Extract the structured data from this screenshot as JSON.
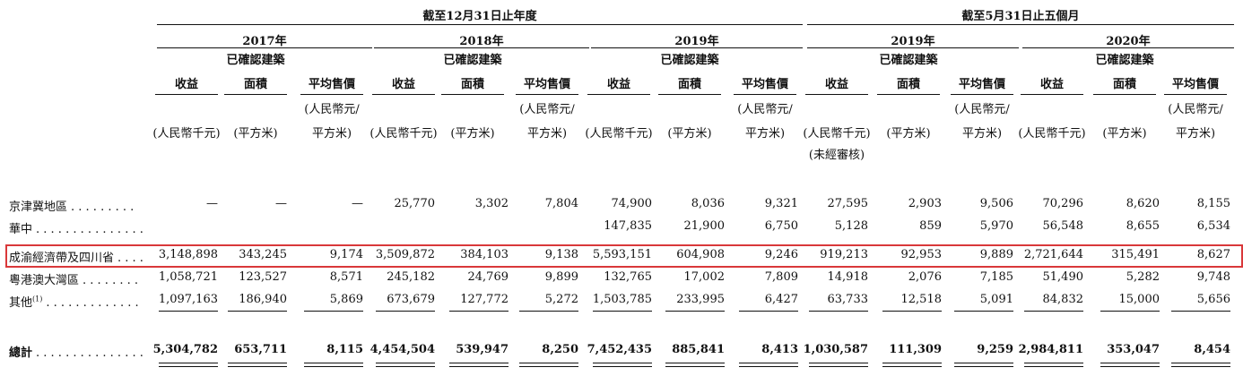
{
  "header": {
    "group_year_end": "截至12月31日止年度",
    "group_five_months": "截至5月31日止五個月",
    "years": [
      "2017年",
      "2018年",
      "2019年",
      "2019年",
      "2020年"
    ]
  },
  "columns": {
    "revenue": "收益",
    "area_line1": "已確認建築",
    "area_line2": "面積",
    "price": "平均售價",
    "unit_revenue": "(人民幣千元)",
    "unit_area": "(平方米)",
    "unit_price_line1": "(人民幣元/",
    "unit_price_line2": "平方米)",
    "unaudited": "(未經審核)"
  },
  "rows": [
    {
      "label": "京津冀地區",
      "dots": ". . . . . . . . .",
      "values": [
        "—",
        "—",
        "—",
        "25,770",
        "3,302",
        "7,804",
        "74,900",
        "8,036",
        "9,321",
        "27,595",
        "2,903",
        "9,506",
        "70,296",
        "8,620",
        "8,155"
      ]
    },
    {
      "label": "華中",
      "dots": ". . . . . . . . . . . . . . .",
      "values": [
        "",
        "",
        "",
        "",
        "",
        "",
        "147,835",
        "21,900",
        "6,750",
        "5,128",
        "859",
        "5,970",
        "56,548",
        "8,655",
        "6,534"
      ]
    },
    {
      "label": "成渝經濟帶及四川省",
      "dots": ". . . .",
      "values": [
        "3,148,898",
        "343,245",
        "9,174",
        "3,509,872",
        "384,103",
        "9,138",
        "5,593,151",
        "604,908",
        "9,246",
        "919,213",
        "92,953",
        "9,889",
        "2,721,644",
        "315,491",
        "8,627"
      ]
    },
    {
      "label": "粵港澳大灣區",
      "dots": ". . . . . . . .",
      "values": [
        "1,058,721",
        "123,527",
        "8,571",
        "245,182",
        "24,769",
        "9,899",
        "132,765",
        "17,002",
        "7,809",
        "14,918",
        "2,076",
        "7,185",
        "51,490",
        "5,282",
        "9,748"
      ]
    },
    {
      "label": "其他",
      "sup": "(1)",
      "dots": ". . . . . . . . . . . . .",
      "values": [
        "1,097,163",
        "186,940",
        "5,869",
        "673,679",
        "127,772",
        "5,272",
        "1,503,785",
        "233,995",
        "6,427",
        "63,733",
        "12,518",
        "5,091",
        "84,832",
        "15,000",
        "5,656"
      ]
    }
  ],
  "total": {
    "label": "總計",
    "dots": ". . . . . . . . . . . . . . .",
    "values": [
      "5,304,782",
      "653,711",
      "8,115",
      "4,454,504",
      "539,947",
      "8,250",
      "7,452,435",
      "885,841",
      "8,413",
      "1,030,587",
      "111,309",
      "9,259",
      "2,984,811",
      "353,047",
      "8,454"
    ]
  },
  "highlight_color": "#d9383a"
}
